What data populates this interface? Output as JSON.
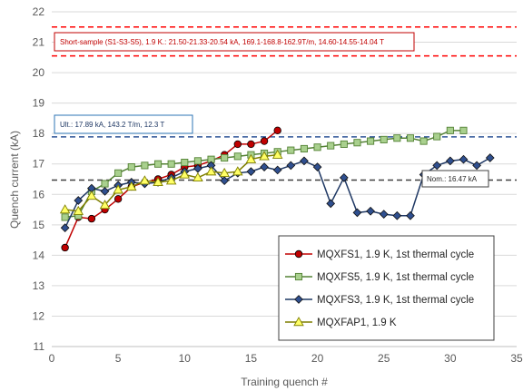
{
  "chart_data": {
    "type": "line",
    "xlabel": "Training quench #",
    "ylabel": "Quench current (kA)",
    "xlim": [
      0,
      35
    ],
    "ylim": [
      11,
      22
    ],
    "xticks": [
      0,
      5,
      10,
      15,
      20,
      25,
      30,
      35
    ],
    "yticks": [
      11,
      12,
      13,
      14,
      15,
      16,
      17,
      18,
      19,
      20,
      21,
      22
    ],
    "grid": "horizontal",
    "legend_position": "bottom-right",
    "series": [
      {
        "name": "MQXFS1, 1.9 K, 1st thermal cycle",
        "color": "#c00000",
        "marker": "circle",
        "x": [
          1,
          2,
          3,
          4,
          5,
          6,
          7,
          8,
          9,
          10,
          11,
          12,
          13,
          14,
          15,
          16,
          17
        ],
        "y": [
          14.25,
          15.25,
          15.2,
          15.5,
          15.85,
          16.25,
          16.4,
          16.5,
          16.65,
          16.9,
          16.95,
          17.1,
          17.3,
          17.65,
          17.65,
          17.75,
          18.1
        ]
      },
      {
        "name": "MQXFS5, 1.9 K, 1st thermal cycle",
        "color": "#548235",
        "fill": "#a9d08e",
        "marker": "square",
        "x": [
          1,
          2,
          3,
          4,
          5,
          6,
          7,
          8,
          9,
          10,
          11,
          12,
          13,
          14,
          15,
          16,
          17,
          18,
          19,
          20,
          21,
          22,
          23,
          24,
          25,
          26,
          27,
          28,
          29,
          30,
          31
        ],
        "y": [
          15.25,
          15.3,
          16.1,
          16.35,
          16.7,
          16.9,
          16.95,
          17.0,
          17.0,
          17.05,
          17.1,
          17.15,
          17.2,
          17.25,
          17.3,
          17.35,
          17.4,
          17.45,
          17.5,
          17.55,
          17.6,
          17.65,
          17.7,
          17.75,
          17.8,
          17.85,
          17.85,
          17.75,
          17.9,
          18.1,
          18.1
        ]
      },
      {
        "name": "MQXFS3, 1.9 K, 1st thermal cycle",
        "color": "#1f3864",
        "fill": "#2f4f8f",
        "marker": "diamond",
        "x": [
          1,
          2,
          3,
          4,
          5,
          6,
          7,
          8,
          9,
          10,
          11,
          12,
          13,
          14,
          15,
          16,
          17,
          18,
          19,
          20,
          21,
          22,
          23,
          24,
          25,
          26,
          27,
          28,
          29,
          30,
          31,
          32,
          33
        ],
        "y": [
          14.9,
          15.8,
          16.2,
          16.1,
          16.3,
          16.4,
          16.35,
          16.4,
          16.55,
          16.75,
          16.85,
          16.95,
          16.45,
          16.7,
          16.75,
          16.9,
          16.8,
          16.95,
          17.1,
          16.9,
          15.7,
          16.55,
          15.4,
          15.45,
          15.35,
          15.3,
          15.3,
          16.65,
          16.95,
          17.1,
          17.15,
          16.95,
          17.2
        ]
      },
      {
        "name": "MQXFAP1, 1.9 K",
        "color": "#7f7f00",
        "fill": "#ffff66",
        "marker": "triangle",
        "x": [
          1,
          2,
          3,
          4,
          5,
          6,
          7,
          8,
          9,
          10,
          11,
          12,
          13,
          14,
          15,
          16,
          17
        ],
        "y": [
          15.5,
          15.45,
          15.95,
          15.65,
          16.15,
          16.25,
          16.45,
          16.4,
          16.45,
          16.65,
          16.55,
          16.75,
          16.7,
          16.75,
          17.15,
          17.25,
          17.3
        ]
      }
    ],
    "reference_lines": [
      {
        "y": 21.5,
        "color": "#ff0000"
      },
      {
        "y": 20.55,
        "color": "#ff0000"
      },
      {
        "y": 17.89,
        "color": "#2e5597"
      },
      {
        "y": 16.47,
        "color": "#404040"
      }
    ],
    "annotations": [
      {
        "text": "Short-sample (S1-S3-S5), 1.9 K.: 21.50-21.33-20.54 kA, 169.1-168.8-162.9T/m, 14.60-14.55-14.04 T",
        "color": "#c00000",
        "border": "#c00000"
      },
      {
        "text": "Ult.: 17.89 kA, 143.2 T/m, 12.3 T",
        "color": "#1f3864",
        "border": "#2e75b6"
      },
      {
        "text": "Nom.: 16.47 kA",
        "color": "#262626",
        "border": "#404040"
      }
    ]
  }
}
